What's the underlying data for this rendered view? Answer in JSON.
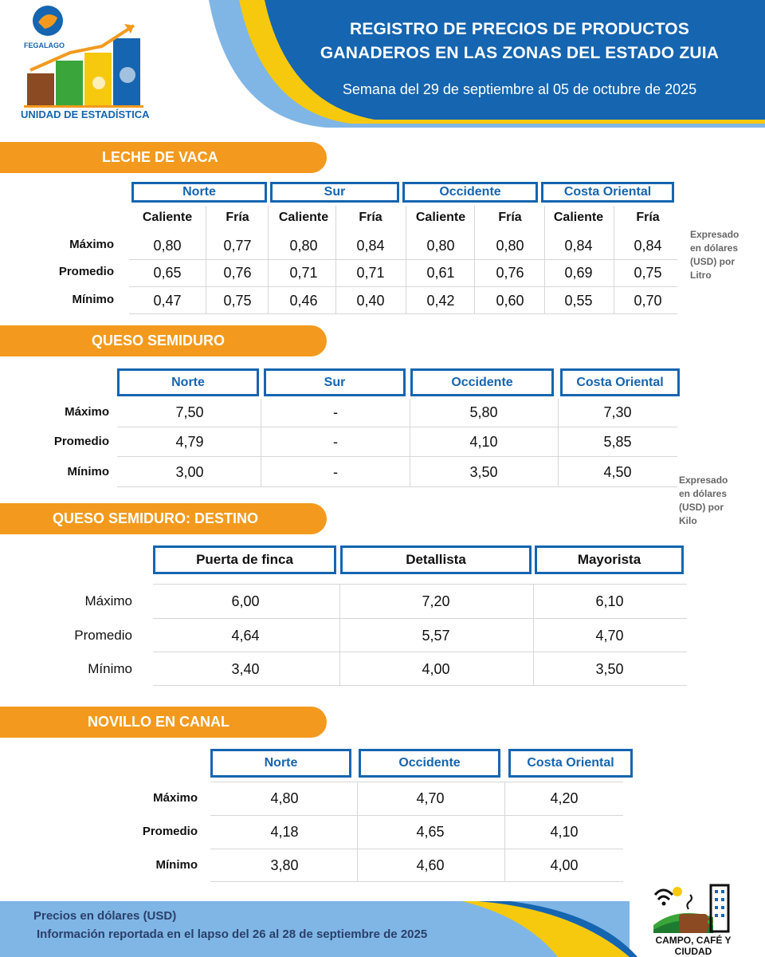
{
  "header": {
    "logo_name": "FEGALAGO",
    "logo_caption": "UNIDAD DE ESTADÍSTICA",
    "title_line1": "REGISTRO DE PRECIOS DE PRODUCTOS",
    "title_line2": "GANADEROS EN LAS ZONAS DEL ESTADO ZUIA",
    "subtitle": "Semana del 29 de septiembre al 05 de octubre de 2025",
    "colors": {
      "blue": "#1565b0",
      "light_blue": "#7fb6e6",
      "yellow": "#f6c90e",
      "orange": "#f39a1e"
    }
  },
  "leche": {
    "title": "LECHE DE VACA",
    "zones": [
      "Norte",
      "Sur",
      "Occidente",
      "Costa Oriental"
    ],
    "sub": [
      "Caliente",
      "Fría"
    ],
    "rows": [
      {
        "label": "Máximo",
        "values": [
          "0,80",
          "0,77",
          "0,80",
          "0,84",
          "0,80",
          "0,80",
          "0,84",
          "0,84"
        ]
      },
      {
        "label": "Promedio",
        "values": [
          "0,65",
          "0,76",
          "0,71",
          "0,71",
          "0,61",
          "0,76",
          "0,69",
          "0,75"
        ]
      },
      {
        "label": "Mínimo",
        "values": [
          "0,47",
          "0,75",
          "0,46",
          "0,40",
          "0,42",
          "0,60",
          "0,55",
          "0,70"
        ]
      }
    ],
    "note": [
      "Expresado",
      "en dólares",
      "(USD) por",
      "Litro"
    ]
  },
  "queso": {
    "title": "QUESO SEMIDURO",
    "zones": [
      "Norte",
      "Sur",
      "Occidente",
      "Costa Oriental"
    ],
    "rows": [
      {
        "label": "Máximo",
        "values": [
          "7,50",
          "-",
          "5,80",
          "7,30"
        ]
      },
      {
        "label": "Promedio",
        "values": [
          "4,79",
          "-",
          "4,10",
          "5,85"
        ]
      },
      {
        "label": "Mínimo",
        "values": [
          "3,00",
          "-",
          "3,50",
          "4,50"
        ]
      }
    ],
    "note": [
      "Expresado",
      "en dólares",
      "(USD) por",
      "Kilo"
    ]
  },
  "destino": {
    "title": "QUESO SEMIDURO: DESTINO",
    "cols": [
      "Puerta de finca",
      "Detallista",
      "Mayorista"
    ],
    "rows": [
      {
        "label": "Máximo",
        "values": [
          "6,00",
          "7,20",
          "6,10"
        ]
      },
      {
        "label": "Promedio",
        "values": [
          "4,64",
          "5,57",
          "4,70"
        ]
      },
      {
        "label": "Mínimo",
        "values": [
          "3,40",
          "4,00",
          "3,50"
        ]
      }
    ]
  },
  "novillo": {
    "title": "NOVILLO EN CANAL",
    "zones": [
      "Norte",
      "Occidente",
      "Costa Oriental"
    ],
    "rows": [
      {
        "label": "Máximo",
        "values": [
          "4,80",
          "4,70",
          "4,20"
        ]
      },
      {
        "label": "Promedio",
        "values": [
          "4,18",
          "4,65",
          "4,10"
        ]
      },
      {
        "label": "Mínimo",
        "values": [
          "3,80",
          "4,60",
          "4,00"
        ]
      }
    ]
  },
  "footer": {
    "line1": "Precios en dólares (USD)",
    "line2": "Información reportada en el lapso del 26 al 28 de septiembre de 2025",
    "brand": "CAMPO, CAFÉ Y CIUDAD"
  }
}
